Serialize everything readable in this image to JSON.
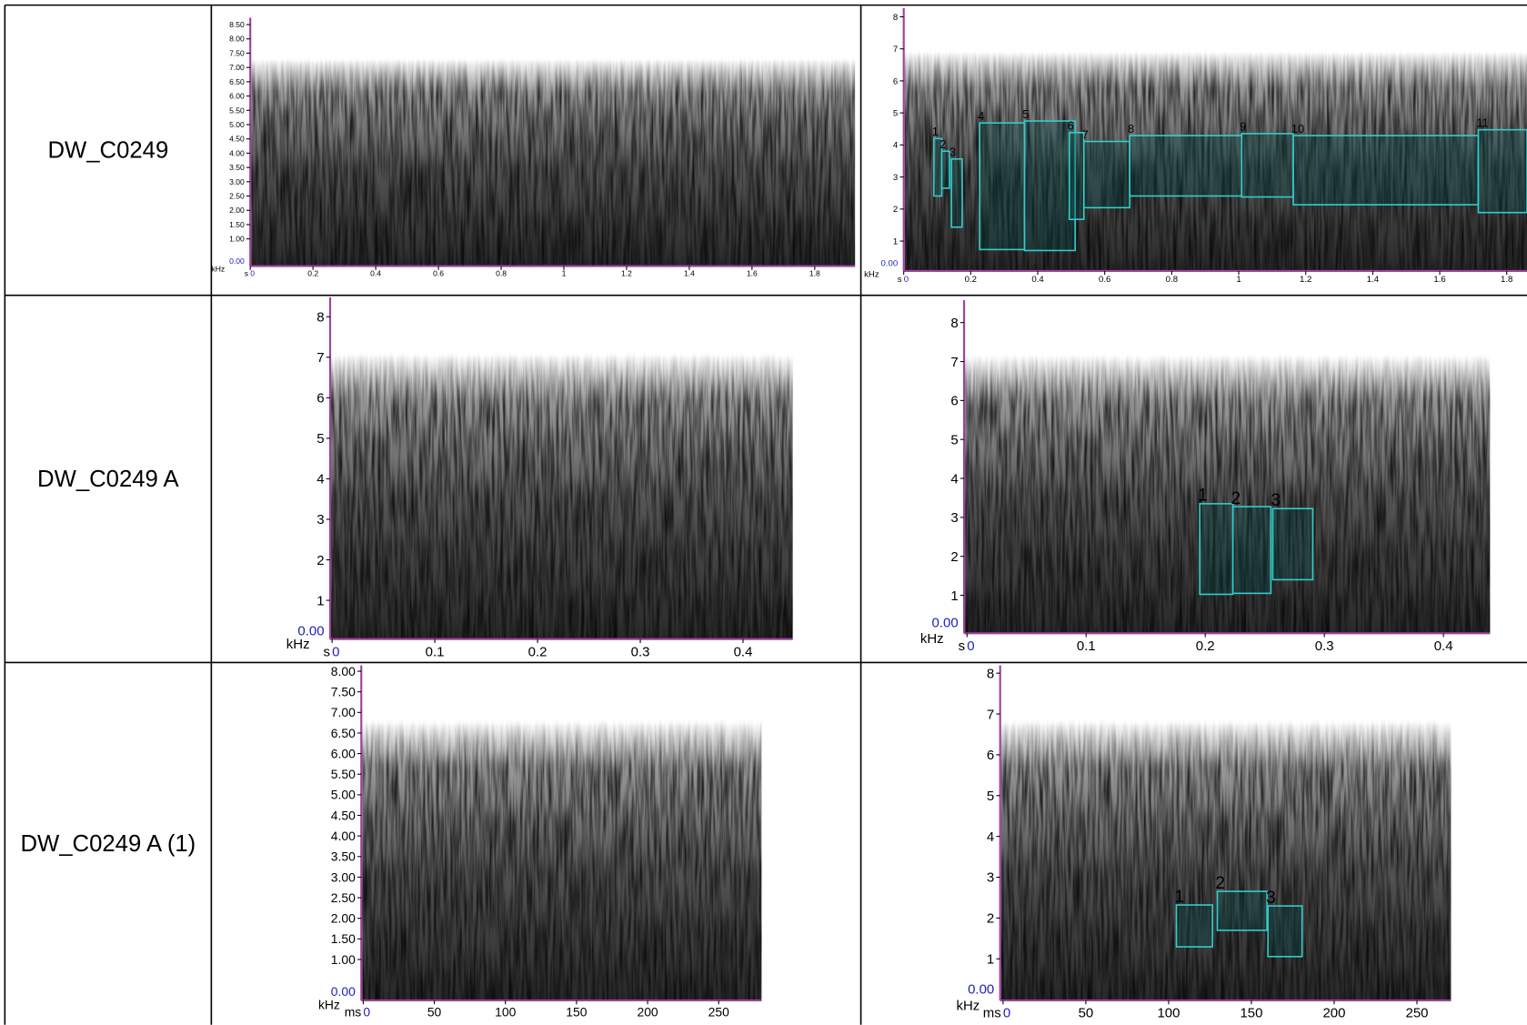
{
  "rows": [
    {
      "label": "DW_C0249",
      "left": {
        "y_unit": "kHz",
        "x_unit": "s",
        "y_zero": "0.00",
        "yticks": [
          "8.50",
          "8.00",
          "7.50",
          "7.00",
          "6.50",
          "6.00",
          "5.50",
          "5.00",
          "4.50",
          "4.00",
          "3.50",
          "3.00",
          "2.50",
          "2.00",
          "1.50",
          "1.00"
        ],
        "xticks": [
          "0",
          "0.2",
          "0.4",
          "0.6",
          "0.8",
          "1",
          "1.2",
          "1.4",
          "1.6",
          "1.8"
        ]
      },
      "right": {
        "y_unit": "kHz",
        "x_unit": "s",
        "y_zero": "0.00",
        "yticks": [
          "8",
          "7",
          "6",
          "5",
          "4",
          "3",
          "2",
          "1"
        ],
        "xticks": [
          "0",
          "0.2",
          "0.4",
          "0.6",
          "0.8",
          "1",
          "1.2",
          "1.4",
          "1.6",
          "1.8"
        ],
        "boxes": [
          "1",
          "2",
          "3",
          "4",
          "5",
          "6",
          "7",
          "8",
          "9",
          "10",
          "11"
        ]
      }
    },
    {
      "label": "DW_C0249 A",
      "left": {
        "y_unit": "kHz",
        "x_unit": "s",
        "y_zero": "0.00",
        "yticks": [
          "8",
          "7",
          "6",
          "5",
          "4",
          "3",
          "2",
          "1"
        ],
        "xticks": [
          "0",
          "0.1",
          "0.2",
          "0.3",
          "0.4"
        ]
      },
      "right": {
        "y_unit": "kHz",
        "x_unit": "s",
        "y_zero": "0.00",
        "yticks": [
          "8",
          "7",
          "6",
          "5",
          "4",
          "3",
          "2",
          "1"
        ],
        "xticks": [
          "0",
          "0.1",
          "0.2",
          "0.3",
          "0.4"
        ],
        "boxes": [
          "1",
          "2",
          "3"
        ]
      }
    },
    {
      "label": "DW_C0249 A (1)",
      "left": {
        "y_unit": "kHz",
        "x_unit": "ms",
        "y_zero": "0.00",
        "yticks": [
          "8.00",
          "7.50",
          "7.00",
          "6.50",
          "6.00",
          "5.50",
          "5.00",
          "4.50",
          "4.00",
          "3.50",
          "3.00",
          "2.50",
          "2.00",
          "1.50",
          "1.00"
        ],
        "xticks": [
          "0",
          "50",
          "100",
          "150",
          "200",
          "250"
        ]
      },
      "right": {
        "y_unit": "kHz",
        "x_unit": "ms",
        "y_zero": "0.00",
        "yticks": [
          "8",
          "7",
          "6",
          "5",
          "4",
          "3",
          "2",
          "1"
        ],
        "xticks": [
          "0",
          "50",
          "100",
          "150",
          "200",
          "250"
        ],
        "boxes": [
          "1",
          "2",
          "3"
        ]
      }
    }
  ]
}
